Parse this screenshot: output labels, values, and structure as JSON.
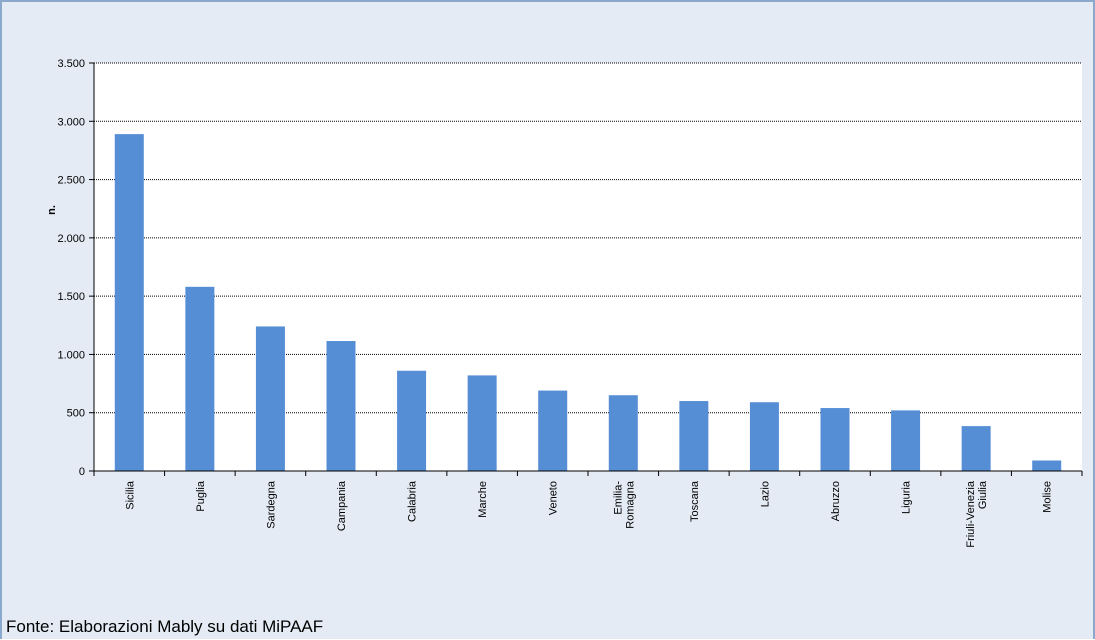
{
  "chart_data": {
    "type": "bar",
    "title": "",
    "xlabel": "",
    "ylabel": "n.",
    "ylim": [
      0,
      3500
    ],
    "yticks": [
      0,
      500,
      1000,
      1500,
      2000,
      2500,
      3000,
      3500
    ],
    "ytick_labels": [
      "0",
      "500",
      "1.000",
      "1.500",
      "2.000",
      "2.500",
      "3.000",
      "3.500"
    ],
    "grid": true,
    "categories": [
      [
        "Sicilia"
      ],
      [
        "Puglia"
      ],
      [
        "Sardegna"
      ],
      [
        "Campania"
      ],
      [
        "Calabria"
      ],
      [
        "Marche"
      ],
      [
        "Veneto"
      ],
      [
        "Emilia-",
        "Romagna"
      ],
      [
        "Toscana"
      ],
      [
        "Lazio"
      ],
      [
        "Abruzzo"
      ],
      [
        "Liguria"
      ],
      [
        "Friuli-Venezia",
        "Giulia"
      ],
      [
        "Molise"
      ]
    ],
    "values": [
      2890,
      1580,
      1240,
      1115,
      860,
      820,
      690,
      650,
      600,
      590,
      540,
      520,
      385,
      90
    ],
    "bar_color": "#558ed5"
  },
  "source": "Fonte: Elaborazioni Mably su dati MiPAAF"
}
